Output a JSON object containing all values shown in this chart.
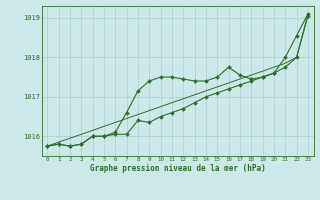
{
  "title": "Graphe pression niveau de la mer (hPa)",
  "bg_color": "#cce8e8",
  "grid_color": "#aacfcf",
  "line_color": "#2d6e2d",
  "x_labels": [
    "0",
    "1",
    "2",
    "3",
    "4",
    "5",
    "6",
    "7",
    "8",
    "9",
    "10",
    "11",
    "12",
    "13",
    "14",
    "15",
    "16",
    "17",
    "18",
    "19",
    "20",
    "21",
    "22",
    "23"
  ],
  "ylim": [
    1015.5,
    1019.3
  ],
  "yticks": [
    1016,
    1017,
    1018,
    1019
  ],
  "series_wavy": [
    1015.75,
    1015.8,
    1015.75,
    1015.8,
    1016.0,
    1016.0,
    1016.1,
    1016.6,
    1017.15,
    1017.4,
    1017.5,
    1017.5,
    1017.45,
    1017.4,
    1017.4,
    1017.5,
    1017.75,
    1017.55,
    1017.45,
    1017.5,
    1017.6,
    1018.0,
    1018.55,
    1019.1
  ],
  "series_lower": [
    1015.75,
    1015.8,
    1015.75,
    1015.8,
    1016.0,
    1016.0,
    1016.05,
    1016.05,
    1016.4,
    1016.35,
    1016.5,
    1016.6,
    1016.7,
    1016.85,
    1017.0,
    1017.1,
    1017.2,
    1017.3,
    1017.4,
    1017.5,
    1017.6,
    1017.75,
    1018.0,
    1019.05
  ],
  "series_diag": [
    1015.75,
    1015.85,
    1015.95,
    1016.05,
    1016.15,
    1016.25,
    1016.35,
    1016.45,
    1016.55,
    1016.65,
    1016.75,
    1016.85,
    1016.95,
    1017.05,
    1017.15,
    1017.25,
    1017.35,
    1017.45,
    1017.55,
    1017.65,
    1017.75,
    1017.85,
    1018.0,
    1019.1
  ]
}
